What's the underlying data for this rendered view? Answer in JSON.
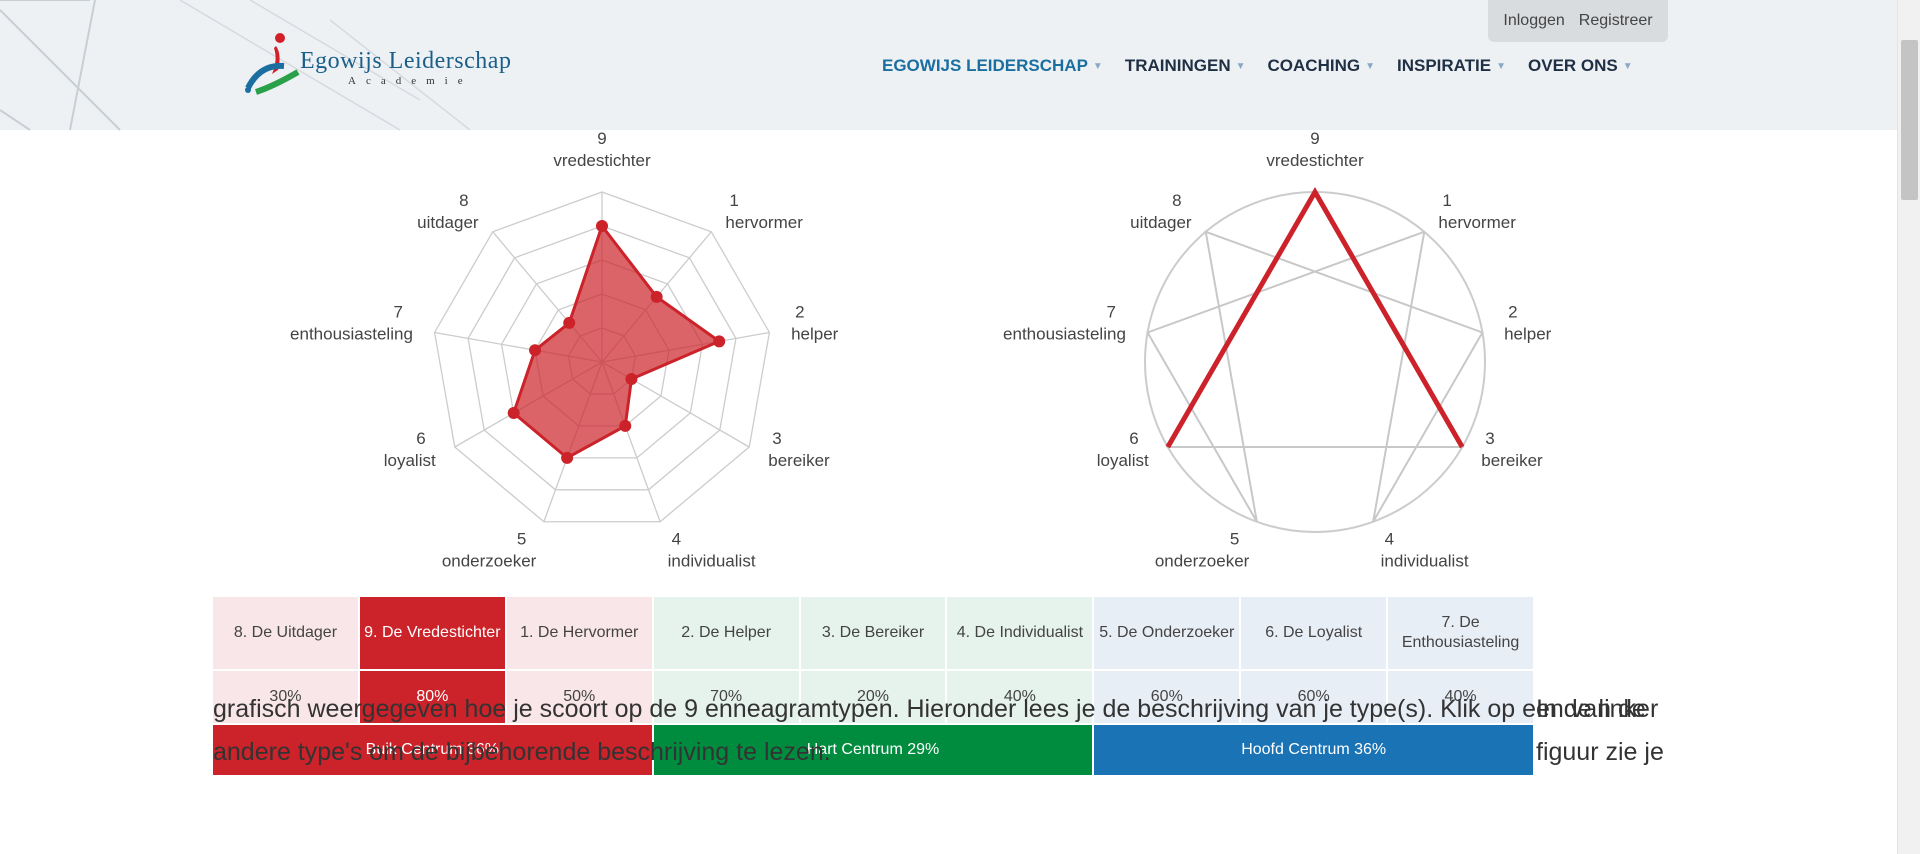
{
  "header": {
    "logo_title": "Egowijs Leiderschap",
    "logo_subtitle": "Academie",
    "login": "Inloggen",
    "register": "Registreer",
    "nav": [
      {
        "label": "EGOWIJS LEIDERSCHAP",
        "active": true
      },
      {
        "label": "TRAININGEN",
        "active": false
      },
      {
        "label": "COACHING",
        "active": false
      },
      {
        "label": "INSPIRATIE",
        "active": false
      },
      {
        "label": "OVER ONS",
        "active": false
      }
    ]
  },
  "chart_data": [
    {
      "type": "radar",
      "axes": [
        {
          "num": "9",
          "name": "vredestichter"
        },
        {
          "num": "1",
          "name": "hervormer"
        },
        {
          "num": "2",
          "name": "helper"
        },
        {
          "num": "3",
          "name": "bereiker"
        },
        {
          "num": "4",
          "name": "individualist"
        },
        {
          "num": "5",
          "name": "onderzoeker"
        },
        {
          "num": "6",
          "name": "loyalist"
        },
        {
          "num": "7",
          "name": "enthousiasteling"
        },
        {
          "num": "8",
          "name": "uitdager"
        }
      ],
      "values": [
        80,
        50,
        70,
        20,
        40,
        60,
        60,
        40,
        30
      ],
      "rmax": 100,
      "color": "#cc2229"
    },
    {
      "type": "enneagram",
      "axes": [
        {
          "num": "9",
          "name": "vredestichter"
        },
        {
          "num": "1",
          "name": "hervormer"
        },
        {
          "num": "2",
          "name": "helper"
        },
        {
          "num": "3",
          "name": "bereiker"
        },
        {
          "num": "4",
          "name": "individualist"
        },
        {
          "num": "5",
          "name": "onderzoeker"
        },
        {
          "num": "6",
          "name": "loyalist"
        },
        {
          "num": "7",
          "name": "enthousiasteling"
        },
        {
          "num": "8",
          "name": "uitdager"
        }
      ],
      "highlight": [
        "9",
        "3",
        "6"
      ],
      "color": "#cc2229"
    }
  ],
  "scores": {
    "types": [
      {
        "label": "8. De Uitdager",
        "pct": "30%",
        "center": "buik",
        "selected": false
      },
      {
        "label": "9. De Vredestichter",
        "pct": "80%",
        "center": "buik",
        "selected": true
      },
      {
        "label": "1. De Hervormer",
        "pct": "50%",
        "center": "buik",
        "selected": false
      },
      {
        "label": "2. De Helper",
        "pct": "70%",
        "center": "hart",
        "selected": false
      },
      {
        "label": "3. De Bereiker",
        "pct": "20%",
        "center": "hart",
        "selected": false
      },
      {
        "label": "4. De Individualist",
        "pct": "40%",
        "center": "hart",
        "selected": false
      },
      {
        "label": "5. De Onderzoeker",
        "pct": "60%",
        "center": "hoofd",
        "selected": false
      },
      {
        "label": "6. De Loyalist",
        "pct": "60%",
        "center": "hoofd",
        "selected": false
      },
      {
        "label": "7. De Enthousiasteling",
        "pct": "40%",
        "center": "hoofd",
        "selected": false
      }
    ],
    "centers": [
      {
        "label": "Buik Centrum 36%",
        "key": "buik"
      },
      {
        "label": "Hart Centrum 29%",
        "key": "hart"
      },
      {
        "label": "Hoofd Centrum 36%",
        "key": "hoofd"
      }
    ]
  },
  "intro": {
    "right_part": "In de linker figuur zie je",
    "text": "grafisch weergegeven hoe je scoort op de 9 enneagramtypen. Hieronder lees je de beschrijving van je type(s). Klik op een van de andere type's om de bijbehorende beschrijving te lezen."
  }
}
